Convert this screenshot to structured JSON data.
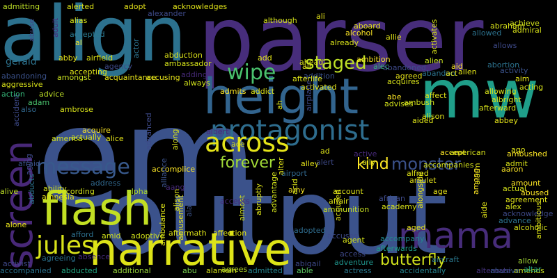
{
  "colors": {
    "background": "#000000",
    "palette": [
      "#440154",
      "#46327e",
      "#365c8d",
      "#277f8e",
      "#1fa187",
      "#4ac16d",
      "#a0da39",
      "#fde725"
    ]
  },
  "words": [
    {
      "text": "em",
      "color": "#3b528b"
    },
    {
      "text": "output",
      "color": "#3b528b"
    },
    {
      "text": "parser",
      "color": "#472d7b"
    },
    {
      "text": "align",
      "color": "#2c718e"
    },
    {
      "text": "mw",
      "color": "#1f9e89"
    },
    {
      "text": "height",
      "color": "#32648e"
    },
    {
      "text": "narrative",
      "color": "#dde318"
    },
    {
      "text": "flash",
      "color": "#c2df23"
    },
    {
      "text": "screen",
      "color": "#482878"
    },
    {
      "text": "mama",
      "color": "#472c7a"
    },
    {
      "text": "protagonist",
      "color": "#2e6d8e"
    },
    {
      "text": "across",
      "color": "#e5e419"
    },
    {
      "text": "jules",
      "color": "#d8e219"
    },
    {
      "text": "message",
      "color": "#38598c"
    },
    {
      "text": "wipe",
      "color": "#4ac16d"
    },
    {
      "text": "staged",
      "color": "#bddf26"
    },
    {
      "text": "monster",
      "color": "#3b528b"
    },
    {
      "text": "forever",
      "color": "#a2da37"
    },
    {
      "text": "kind",
      "color": "#fde725"
    },
    {
      "text": "butterfly",
      "color": "#d0e11c"
    },
    {
      "text": "gerald",
      "color": "#2c728e"
    },
    {
      "text": "accompanied",
      "color": "#2c728e"
    },
    {
      "text": "abducted",
      "color": "#22a884"
    },
    {
      "text": "additional",
      "color": "#9bd93c"
    },
    {
      "text": "abu",
      "color": "#7ad151"
    },
    {
      "text": "agrees",
      "color": "#b5de2b"
    },
    {
      "text": "admitted",
      "color": "#25848e"
    },
    {
      "text": "able",
      "color": "#5ec962"
    },
    {
      "text": "abigail",
      "color": "#3e4989"
    },
    {
      "text": "actress",
      "color": "#2a788e"
    },
    {
      "text": "accidentally",
      "color": "#26828e"
    },
    {
      "text": "alternate",
      "color": "#46337f"
    },
    {
      "text": "amends",
      "color": "#c8e020"
    },
    {
      "text": "altar",
      "color": "#25ab82"
    },
    {
      "text": "allow",
      "color": "#a5db36"
    },
    {
      "text": "abusive",
      "color": "#38588c"
    },
    {
      "text": "aircraft",
      "color": "#2a788e"
    },
    {
      "text": "accompany",
      "color": "#23898e"
    },
    {
      "text": "afterwards",
      "color": "#1e9b8a"
    },
    {
      "text": "adventure",
      "color": "#1f948c"
    },
    {
      "text": "access",
      "color": "#3e4989"
    },
    {
      "text": "agent",
      "color": "#d5e21a"
    },
    {
      "text": "aged",
      "color": "#e7e419"
    },
    {
      "text": "adopted",
      "color": "#2f6c8e"
    },
    {
      "text": "accuses",
      "color": "#3e4a89"
    },
    {
      "text": "affection",
      "color": "#e2e418"
    },
    {
      "text": "aftermath",
      "color": "#dde318"
    },
    {
      "text": "adoptive",
      "color": "#d2e21b"
    },
    {
      "text": "amid",
      "color": "#d0e11c"
    },
    {
      "text": "afford",
      "color": "#2d708e"
    },
    {
      "text": "agreeing",
      "color": "#2c718e"
    },
    {
      "text": "absence",
      "color": "#472a7a"
    },
    {
      "text": "activist",
      "color": "#3f4889"
    },
    {
      "text": "alone",
      "color": "#ece51b"
    },
    {
      "text": "amnesia",
      "color": "#e7e419"
    },
    {
      "text": "abducts",
      "color": "#2c728e"
    },
    {
      "text": "ability",
      "color": "#d5e21a"
    },
    {
      "text": "alive",
      "color": "#bddf26"
    },
    {
      "text": "according",
      "color": "#d2e21b"
    },
    {
      "text": "address",
      "color": "#31688e"
    },
    {
      "text": "alpha",
      "color": "#addc30"
    },
    {
      "text": "ambulance",
      "color": "#dde318"
    },
    {
      "text": "amusement",
      "color": "#e7e419"
    },
    {
      "text": "accomplice",
      "color": "#fde725"
    },
    {
      "text": "alliance",
      "color": "#3b528b"
    },
    {
      "text": "aang",
      "color": "#472a7a"
    },
    {
      "text": "afraid",
      "color": "#3b528b"
    },
    {
      "text": "aging",
      "color": "#3e4a89"
    },
    {
      "text": "america",
      "color": "#d2e21b"
    },
    {
      "text": "actually",
      "color": "#d8e219"
    },
    {
      "text": "alice",
      "color": "#e5e419"
    },
    {
      "text": "acquire",
      "color": "#fde725"
    },
    {
      "text": "ambrose",
      "color": "#d8e219"
    },
    {
      "text": "accident",
      "color": "#3e4a89"
    },
    {
      "text": "also",
      "color": "#31688e"
    },
    {
      "text": "adam",
      "color": "#4ac16d"
    },
    {
      "text": "action",
      "color": "#35b779"
    },
    {
      "text": "advice",
      "color": "#bddf26"
    },
    {
      "text": "aggressive",
      "color": "#d8e219"
    },
    {
      "text": "abandoning",
      "color": "#3b528b"
    },
    {
      "text": "amongst",
      "color": "#c8e020"
    },
    {
      "text": "acquaintance",
      "color": "#e7e419"
    },
    {
      "text": "accusing",
      "color": "#e7e419"
    },
    {
      "text": "always",
      "color": "#d0e11c"
    },
    {
      "text": "adding",
      "color": "#472a7a"
    },
    {
      "text": "accepting",
      "color": "#dde318"
    },
    {
      "text": "agency",
      "color": "#3e4a89"
    },
    {
      "text": "ambassador",
      "color": "#d5e21a"
    },
    {
      "text": "abduction",
      "color": "#dde318"
    },
    {
      "text": "abby",
      "color": "#e7e419"
    },
    {
      "text": "airfield",
      "color": "#dde318"
    },
    {
      "text": "al",
      "color": "#fde725"
    },
    {
      "text": "accepted",
      "color": "#2a788e"
    },
    {
      "text": "alias",
      "color": "#d5e21a"
    },
    {
      "text": "alerted",
      "color": "#dde318"
    },
    {
      "text": "adopt",
      "color": "#e7e419"
    },
    {
      "text": "acknowledges",
      "color": "#e2e418"
    },
    {
      "text": "admitting",
      "color": "#bddf26"
    },
    {
      "text": "alexander",
      "color": "#3e4a89"
    },
    {
      "text": "although",
      "color": "#d5e21a"
    },
    {
      "text": "ali",
      "color": "#e5e419"
    },
    {
      "text": "aboard",
      "color": "#e7e419"
    },
    {
      "text": "already",
      "color": "#d8e219"
    },
    {
      "text": "alcohol",
      "color": "#fde725"
    },
    {
      "text": "allie",
      "color": "#dde318"
    },
    {
      "text": "ambition",
      "color": "#fde725"
    },
    {
      "text": "add",
      "color": "#e2e418"
    },
    {
      "text": "ahead",
      "color": "#dde318"
    },
    {
      "text": "air",
      "color": "#e7e419"
    },
    {
      "text": "addition",
      "color": "#3b528b"
    },
    {
      "text": "admits",
      "color": "#fde725"
    },
    {
      "text": "addict",
      "color": "#dde318"
    },
    {
      "text": "activated",
      "color": "#e5e419"
    },
    {
      "text": "afterlife",
      "color": "#dde318"
    },
    {
      "text": "alec",
      "color": "#35b779"
    },
    {
      "text": "activates",
      "color": "#d8e219"
    },
    {
      "text": "abandoned",
      "color": "#3e4a89"
    },
    {
      "text": "agreed",
      "color": "#e7e419"
    },
    {
      "text": "alien",
      "color": "#c8e020"
    },
    {
      "text": "abandon",
      "color": "#2c728e"
    },
    {
      "text": "act",
      "color": "#e7e419"
    },
    {
      "text": "allen",
      "color": "#e2e418"
    },
    {
      "text": "aid",
      "color": "#fde725"
    },
    {
      "text": "acquires",
      "color": "#d8e219"
    },
    {
      "text": "abe",
      "color": "#fde725"
    },
    {
      "text": "ambush",
      "color": "#d5e21a"
    },
    {
      "text": "advises",
      "color": "#d2e21b"
    },
    {
      "text": "affect",
      "color": "#e2e418"
    },
    {
      "text": "aided",
      "color": "#dde318"
    },
    {
      "text": "alison",
      "color": "#dde318"
    },
    {
      "text": "allowing",
      "color": "#d8e219"
    },
    {
      "text": "albright",
      "color": "#d5e21a"
    },
    {
      "text": "afterward",
      "color": "#d8e219"
    },
    {
      "text": "abbey",
      "color": "#e5e419"
    },
    {
      "text": "achieve",
      "color": "#d2e21b"
    },
    {
      "text": "admiral",
      "color": "#d8e219"
    },
    {
      "text": "allowed",
      "color": "#2c728e"
    },
    {
      "text": "abraham",
      "color": "#d8e219"
    },
    {
      "text": "allows",
      "color": "#3e4a89"
    },
    {
      "text": "abortion",
      "color": "#2c728e"
    },
    {
      "text": "activity",
      "color": "#3b528b"
    },
    {
      "text": "aim",
      "color": "#e5e419"
    },
    {
      "text": "acting",
      "color": "#d8e219"
    },
    {
      "text": "ago",
      "color": "#e2e418"
    },
    {
      "text": "ambushed",
      "color": "#fde725"
    },
    {
      "text": "accept",
      "color": "#fde725"
    },
    {
      "text": "american",
      "color": "#d8e219"
    },
    {
      "text": "accompanies",
      "color": "#d5e21a"
    },
    {
      "text": "admit",
      "color": "#d8e219"
    },
    {
      "text": "aaron",
      "color": "#fde725"
    },
    {
      "text": "amount",
      "color": "#fde725"
    },
    {
      "text": "abused",
      "color": "#fde725"
    },
    {
      "text": "actual",
      "color": "#d5e21a"
    },
    {
      "text": "agreement",
      "color": "#e2e418"
    },
    {
      "text": "alex",
      "color": "#d8e219"
    },
    {
      "text": "acknowledge",
      "color": "#3e4a89"
    },
    {
      "text": "advance",
      "color": "#2c728e"
    },
    {
      "text": "alcoholic",
      "color": "#d8e219"
    },
    {
      "text": "ambitious",
      "color": "#dde318"
    },
    {
      "text": "alarm",
      "color": "#e5e419"
    },
    {
      "text": "aide",
      "color": "#e2e418"
    },
    {
      "text": "among",
      "color": "#fde725"
    },
    {
      "text": "age",
      "color": "#e7e419"
    },
    {
      "text": "alongside",
      "color": "#e5e419"
    },
    {
      "text": "amulet",
      "color": "#e7e419"
    },
    {
      "text": "alfred",
      "color": "#e2e418"
    },
    {
      "text": "ally",
      "color": "#d8e219"
    },
    {
      "text": "active",
      "color": "#472a7a"
    },
    {
      "text": "ad",
      "color": "#dde318"
    },
    {
      "text": "airport",
      "color": "#31688e"
    },
    {
      "text": "alley",
      "color": "#e5e419"
    },
    {
      "text": "alert",
      "color": "#3e4a89"
    },
    {
      "text": "alter",
      "color": "#e2e418"
    },
    {
      "text": "amy",
      "color": "#fde725"
    },
    {
      "text": "account",
      "color": "#dde318"
    },
    {
      "text": "affair",
      "color": "#dde318"
    },
    {
      "text": "ammunition",
      "color": "#c8e020"
    },
    {
      "text": "african",
      "color": "#3e4a89"
    },
    {
      "text": "academy",
      "color": "#d8e219"
    },
    {
      "text": "accused",
      "color": "#e2e418"
    },
    {
      "text": "acid",
      "color": "#d8e219"
    },
    {
      "text": "advantage",
      "color": "#d2e21b"
    },
    {
      "text": "abruptly",
      "color": "#dde318"
    },
    {
      "text": "almost",
      "color": "#d2e21b"
    },
    {
      "text": "accepts",
      "color": "#472a7a"
    },
    {
      "text": "albert",
      "color": "#472a7a"
    },
    {
      "text": "ace",
      "color": "#d8e219"
    },
    {
      "text": "advanced",
      "color": "#3e4a89"
    },
    {
      "text": "along",
      "color": "#d8e219"
    },
    {
      "text": "alan",
      "color": "#3b528b"
    },
    {
      "text": "alison",
      "color": "#dde318"
    },
    {
      "text": "alamein",
      "color": "#d5e21a"
    },
    {
      "text": "airplane",
      "color": "#3e4a89"
    },
    {
      "text": "ah",
      "color": "#dde318"
    },
    {
      "text": "abuse",
      "color": "#3e4a89"
    },
    {
      "text": "adult",
      "color": "#472a7a"
    },
    {
      "text": "actor",
      "color": "#2c728e"
    }
  ]
}
